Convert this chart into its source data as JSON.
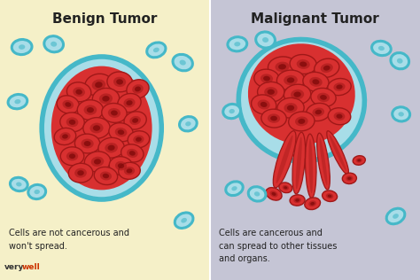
{
  "left_bg": "#f5f0c8",
  "right_bg": "#c5c5d5",
  "title_left": "Benign Tumor",
  "title_right": "Malignant Tumor",
  "desc_left": "Cells are not cancerous and\nwon't spread.",
  "desc_right": "Cells are cancerous and\ncan spread to other tissues\nand organs.",
  "title_fontsize": 11,
  "desc_fontsize": 7.0,
  "cell_border_color": "#45b8c8",
  "cell_fill_color": "#a8dde8",
  "red_fill": "#d83030",
  "red_dark": "#a01818",
  "red_nucleus": "#7a0808",
  "watermark_very": "#333333",
  "watermark_well": "#cc3300",
  "fig_width": 4.74,
  "fig_height": 3.16,
  "benign_cells": [
    [
      2.35,
      4.65,
      0.33,
      0.26,
      10
    ],
    [
      2.85,
      4.72,
      0.3,
      0.24,
      -5
    ],
    [
      3.28,
      4.55,
      0.27,
      0.22,
      18
    ],
    [
      1.88,
      4.48,
      0.29,
      0.23,
      -8
    ],
    [
      2.52,
      4.32,
      0.32,
      0.25,
      5
    ],
    [
      3.08,
      4.22,
      0.28,
      0.22,
      12
    ],
    [
      1.62,
      4.18,
      0.27,
      0.21,
      -15
    ],
    [
      2.15,
      4.05,
      0.31,
      0.24,
      0
    ],
    [
      2.72,
      3.98,
      0.3,
      0.23,
      -6
    ],
    [
      3.22,
      3.8,
      0.27,
      0.21,
      14
    ],
    [
      1.72,
      3.76,
      0.29,
      0.23,
      -5
    ],
    [
      2.3,
      3.62,
      0.32,
      0.25,
      3
    ],
    [
      2.88,
      3.52,
      0.29,
      0.22,
      -10
    ],
    [
      3.3,
      3.35,
      0.26,
      0.2,
      8
    ],
    [
      1.55,
      3.42,
      0.26,
      0.2,
      10
    ],
    [
      2.08,
      3.25,
      0.3,
      0.23,
      -3
    ],
    [
      2.65,
      3.15,
      0.31,
      0.24,
      6
    ],
    [
      3.15,
      3.02,
      0.27,
      0.21,
      -12
    ],
    [
      1.72,
      2.95,
      0.28,
      0.22,
      0
    ],
    [
      2.32,
      2.82,
      0.31,
      0.24,
      8
    ],
    [
      2.88,
      2.72,
      0.28,
      0.22,
      -7
    ],
    [
      1.92,
      2.55,
      0.29,
      0.23,
      3
    ],
    [
      2.52,
      2.48,
      0.28,
      0.21,
      -9
    ],
    [
      3.08,
      2.6,
      0.26,
      0.2,
      6
    ]
  ],
  "benign_blue_cells": [
    [
      0.52,
      5.55,
      0.24,
      0.18,
      5
    ],
    [
      1.28,
      5.62,
      0.19,
      0.23,
      80
    ],
    [
      3.72,
      5.48,
      0.23,
      0.17,
      20
    ],
    [
      4.35,
      5.18,
      0.19,
      0.24,
      72
    ],
    [
      0.42,
      4.25,
      0.23,
      0.17,
      10
    ],
    [
      4.48,
      3.72,
      0.21,
      0.17,
      15
    ],
    [
      0.45,
      2.28,
      0.21,
      0.16,
      -10
    ],
    [
      0.88,
      2.1,
      0.21,
      0.17,
      8
    ],
    [
      4.38,
      1.42,
      0.23,
      0.17,
      28
    ]
  ],
  "malignant_cells": [
    [
      6.72,
      5.08,
      0.34,
      0.24,
      5
    ],
    [
      7.22,
      5.14,
      0.32,
      0.23,
      -6
    ],
    [
      7.78,
      5.05,
      0.3,
      0.22,
      12
    ],
    [
      6.35,
      4.8,
      0.3,
      0.22,
      -5
    ],
    [
      6.92,
      4.76,
      0.33,
      0.24,
      3
    ],
    [
      7.52,
      4.72,
      0.31,
      0.23,
      -10
    ],
    [
      8.08,
      4.6,
      0.28,
      0.2,
      8
    ],
    [
      6.45,
      4.48,
      0.32,
      0.24,
      0
    ],
    [
      7.08,
      4.42,
      0.32,
      0.24,
      5
    ],
    [
      7.7,
      4.35,
      0.3,
      0.22,
      -8
    ],
    [
      6.28,
      4.18,
      0.3,
      0.23,
      -12
    ],
    [
      6.92,
      4.1,
      0.32,
      0.24,
      3
    ],
    [
      7.58,
      4.0,
      0.29,
      0.21,
      10
    ],
    [
      8.08,
      3.9,
      0.27,
      0.2,
      -5
    ],
    [
      6.52,
      3.85,
      0.3,
      0.22,
      -3
    ],
    [
      7.18,
      3.78,
      0.31,
      0.23,
      6
    ]
  ],
  "tentacles": [
    [
      7.0,
      3.55,
      6.55,
      2.2,
      0.32
    ],
    [
      7.18,
      3.52,
      7.05,
      2.05,
      0.28
    ],
    [
      7.38,
      3.48,
      7.42,
      1.95,
      0.26
    ],
    [
      7.6,
      3.5,
      7.8,
      2.15,
      0.24
    ],
    [
      7.8,
      3.55,
      8.28,
      2.52,
      0.22
    ]
  ],
  "malignant_blue_cells": [
    [
      5.65,
      5.62,
      0.23,
      0.17,
      5
    ],
    [
      6.32,
      5.72,
      0.19,
      0.23,
      82
    ],
    [
      9.08,
      5.52,
      0.23,
      0.17,
      -10
    ],
    [
      9.52,
      5.22,
      0.19,
      0.22,
      72
    ],
    [
      5.52,
      4.02,
      0.21,
      0.17,
      10
    ],
    [
      9.55,
      3.95,
      0.21,
      0.17,
      -5
    ],
    [
      5.58,
      2.18,
      0.21,
      0.16,
      20
    ],
    [
      6.12,
      2.05,
      0.21,
      0.17,
      -15
    ],
    [
      9.42,
      1.52,
      0.23,
      0.17,
      28
    ]
  ]
}
